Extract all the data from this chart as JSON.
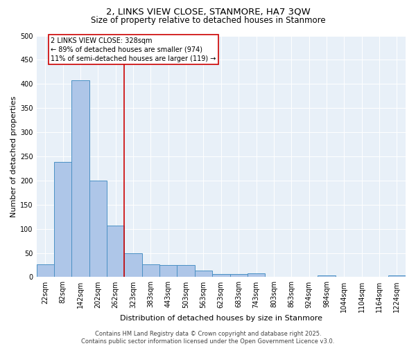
{
  "title1": "2, LINKS VIEW CLOSE, STANMORE, HA7 3QW",
  "title2": "Size of property relative to detached houses in Stanmore",
  "xlabel": "Distribution of detached houses by size in Stanmore",
  "ylabel": "Number of detached properties",
  "bar_labels": [
    "22sqm",
    "82sqm",
    "142sqm",
    "202sqm",
    "262sqm",
    "323sqm",
    "383sqm",
    "443sqm",
    "503sqm",
    "563sqm",
    "623sqm",
    "683sqm",
    "743sqm",
    "803sqm",
    "863sqm",
    "924sqm",
    "984sqm",
    "1044sqm",
    "1104sqm",
    "1164sqm",
    "1224sqm"
  ],
  "bar_values": [
    27,
    238,
    407,
    200,
    106,
    49,
    26,
    25,
    25,
    13,
    6,
    6,
    8,
    1,
    1,
    1,
    4,
    0,
    0,
    0,
    4
  ],
  "bar_color": "#aec6e8",
  "bar_edge_color": "#4a90c4",
  "vline_x_index": 5,
  "vline_color": "#cc0000",
  "annotation_text": "2 LINKS VIEW CLOSE: 328sqm\n← 89% of detached houses are smaller (974)\n11% of semi-detached houses are larger (119) →",
  "annotation_box_color": "#ffffff",
  "annotation_box_edge": "#cc0000",
  "ylim": [
    0,
    500
  ],
  "yticks": [
    0,
    50,
    100,
    150,
    200,
    250,
    300,
    350,
    400,
    450,
    500
  ],
  "footer1": "Contains HM Land Registry data © Crown copyright and database right 2025.",
  "footer2": "Contains public sector information licensed under the Open Government Licence v3.0.",
  "background_color": "#e8f0f8",
  "title1_fontsize": 9.5,
  "title2_fontsize": 8.5,
  "tick_fontsize": 7,
  "label_fontsize": 8,
  "annotation_fontsize": 7,
  "footer_fontsize": 6
}
